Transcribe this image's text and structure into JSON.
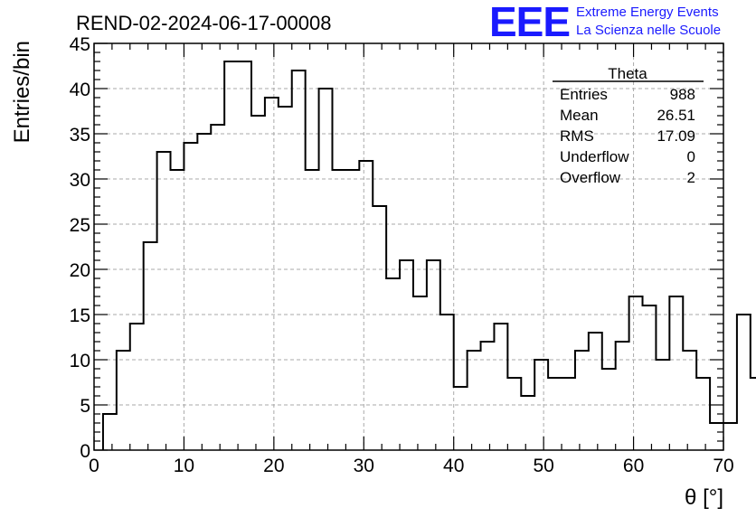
{
  "chart_data": {
    "type": "histogram",
    "title": "REND-02-2024-06-17-00008",
    "xlabel": "θ [°]",
    "ylabel": "Entries/bin",
    "xlim": [
      0,
      70
    ],
    "ylim": [
      0,
      45
    ],
    "xticks": [
      0,
      10,
      20,
      30,
      40,
      50,
      60,
      70
    ],
    "yticks": [
      0,
      5,
      10,
      15,
      20,
      25,
      30,
      35,
      40,
      45
    ],
    "grid": true,
    "bin_edges_start": 1,
    "bin_width": 1.5,
    "values": [
      4,
      11,
      14,
      23,
      33,
      31,
      34,
      35,
      36,
      43,
      43,
      37,
      39,
      38,
      42,
      31,
      40,
      31,
      31,
      32,
      27,
      19,
      21,
      17,
      21,
      15,
      7,
      11,
      12,
      14,
      8,
      6,
      10,
      8,
      8,
      11,
      13,
      9,
      12,
      17,
      16,
      10,
      17,
      11,
      8,
      3,
      3,
      15,
      8
    ],
    "stats": {
      "name": "Theta",
      "rows": [
        {
          "label": "Entries",
          "value": "988"
        },
        {
          "label": "Mean",
          "value": "26.51"
        },
        {
          "label": "RMS",
          "value": "17.09"
        },
        {
          "label": "Underflow",
          "value": "0"
        },
        {
          "label": "Overflow",
          "value": "2"
        }
      ]
    }
  },
  "logo": {
    "mark": "EEE",
    "line1": "Extreme Energy Events",
    "line2": "La Scienza nelle Scuole"
  },
  "colors": {
    "logo": "#1a1aff",
    "line": "#000000",
    "grid": "#aaaaaa"
  }
}
